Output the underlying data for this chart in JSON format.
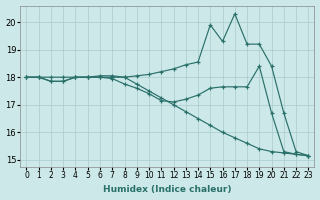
{
  "xlabel": "Humidex (Indice chaleur)",
  "background_color": "#cce8e8",
  "grid_color": "#aacccc",
  "line_color": "#2a706a",
  "xlim": [
    -0.5,
    23.5
  ],
  "ylim": [
    14.75,
    20.6
  ],
  "yticks": [
    15,
    16,
    17,
    18,
    19,
    20
  ],
  "xticks": [
    0,
    1,
    2,
    3,
    4,
    5,
    6,
    7,
    8,
    9,
    10,
    11,
    12,
    13,
    14,
    15,
    16,
    17,
    18,
    19,
    20,
    21,
    22,
    23
  ],
  "line1_x": [
    0,
    1,
    2,
    3,
    4,
    5,
    6,
    7,
    8,
    9,
    10,
    11,
    12,
    13,
    14,
    15,
    16,
    17,
    18,
    19,
    20,
    21,
    22,
    23
  ],
  "line1_y": [
    18.0,
    18.0,
    18.0,
    18.0,
    18.0,
    18.0,
    18.0,
    18.0,
    18.0,
    17.75,
    17.5,
    17.25,
    17.0,
    16.75,
    16.5,
    16.25,
    16.0,
    15.8,
    15.6,
    15.4,
    15.3,
    15.25,
    15.2,
    15.15
  ],
  "line2_x": [
    0,
    1,
    2,
    3,
    4,
    5,
    6,
    7,
    8,
    9,
    10,
    11,
    12,
    13,
    14,
    15,
    16,
    17,
    18,
    19,
    20,
    21,
    22,
    23
  ],
  "line2_y": [
    18.0,
    18.0,
    17.85,
    17.85,
    18.0,
    18.0,
    18.0,
    17.95,
    17.75,
    17.6,
    17.4,
    17.15,
    17.1,
    17.2,
    17.35,
    17.6,
    17.65,
    17.65,
    17.65,
    18.4,
    16.7,
    15.3,
    15.2,
    15.15
  ],
  "line3_x": [
    0,
    1,
    2,
    3,
    4,
    5,
    6,
    7,
    8,
    9,
    10,
    11,
    12,
    13,
    14,
    15,
    16,
    17,
    18,
    19,
    20,
    21,
    22,
    23
  ],
  "line3_y": [
    18.0,
    18.0,
    17.85,
    17.85,
    18.0,
    18.0,
    18.05,
    18.05,
    18.0,
    18.05,
    18.1,
    18.2,
    18.3,
    18.45,
    18.55,
    19.9,
    19.3,
    20.3,
    19.2,
    19.2,
    18.4,
    16.7,
    15.3,
    15.15
  ]
}
